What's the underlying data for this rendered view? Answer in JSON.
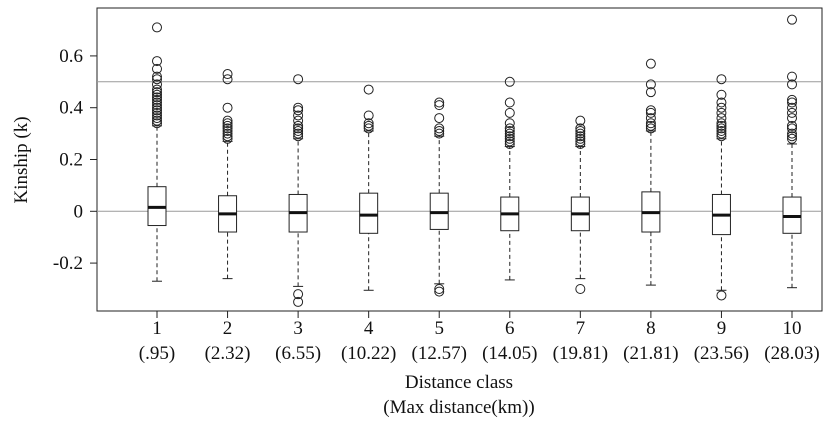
{
  "chart_data": {
    "type": "boxplot",
    "title": "",
    "xlabel": "Distance class",
    "xlabel_sub": "(Max distance(km))",
    "ylabel": "Kinship (k)",
    "ylim": [
      -0.385,
      0.785
    ],
    "yticks": [
      -0.2,
      0,
      0.2,
      0.4,
      0.6
    ],
    "ytick_labels": [
      "-0.2",
      "0",
      "0.2",
      "0.4",
      "0.6"
    ],
    "reference_lines": [
      0,
      0.5
    ],
    "grid": false,
    "legend": "none",
    "categories": [
      "1",
      "2",
      "3",
      "4",
      "5",
      "6",
      "7",
      "8",
      "9",
      "10"
    ],
    "category_sublabels": [
      "(.95)",
      "(2.32)",
      "(6.55)",
      "(10.22)",
      "(12.57)",
      "(14.05)",
      "(19.81)",
      "(21.81)",
      "(23.56)",
      "(28.03)"
    ],
    "boxes": [
      {
        "category": "1",
        "whisker_low": -0.27,
        "q1": -0.055,
        "median": 0.015,
        "q3": 0.095,
        "whisker_high": 0.33,
        "outliers": [
          0.34,
          0.35,
          0.36,
          0.37,
          0.38,
          0.39,
          0.4,
          0.41,
          0.42,
          0.43,
          0.44,
          0.45,
          0.46,
          0.47,
          0.49,
          0.51,
          0.52,
          0.55,
          0.58,
          0.71
        ]
      },
      {
        "category": "2",
        "whisker_low": -0.26,
        "q1": -0.08,
        "median": -0.01,
        "q3": 0.06,
        "whisker_high": 0.27,
        "outliers": [
          0.28,
          0.29,
          0.3,
          0.31,
          0.32,
          0.33,
          0.34,
          0.35,
          0.4,
          0.51,
          0.53
        ]
      },
      {
        "category": "3",
        "whisker_low": -0.29,
        "q1": -0.08,
        "median": -0.005,
        "q3": 0.065,
        "whisker_high": 0.28,
        "outliers": [
          -0.32,
          -0.35,
          0.29,
          0.3,
          0.31,
          0.32,
          0.33,
          0.35,
          0.37,
          0.39,
          0.4,
          0.51
        ]
      },
      {
        "category": "4",
        "whisker_low": -0.305,
        "q1": -0.085,
        "median": -0.015,
        "q3": 0.07,
        "whisker_high": 0.31,
        "outliers": [
          0.32,
          0.33,
          0.34,
          0.37,
          0.47
        ]
      },
      {
        "category": "5",
        "whisker_low": -0.28,
        "q1": -0.07,
        "median": -0.005,
        "q3": 0.07,
        "whisker_high": 0.29,
        "outliers": [
          -0.3,
          -0.31,
          0.3,
          0.31,
          0.32,
          0.36,
          0.41,
          0.42
        ]
      },
      {
        "category": "6",
        "whisker_low": -0.265,
        "q1": -0.075,
        "median": -0.01,
        "q3": 0.055,
        "whisker_high": 0.25,
        "outliers": [
          0.26,
          0.27,
          0.28,
          0.29,
          0.3,
          0.31,
          0.32,
          0.34,
          0.38,
          0.42,
          0.5
        ]
      },
      {
        "category": "7",
        "whisker_low": -0.26,
        "q1": -0.075,
        "median": -0.01,
        "q3": 0.055,
        "whisker_high": 0.25,
        "outliers": [
          -0.3,
          0.26,
          0.27,
          0.28,
          0.29,
          0.3,
          0.31,
          0.32,
          0.35
        ]
      },
      {
        "category": "8",
        "whisker_low": -0.285,
        "q1": -0.08,
        "median": -0.005,
        "q3": 0.075,
        "whisker_high": 0.31,
        "outliers": [
          0.32,
          0.33,
          0.34,
          0.36,
          0.38,
          0.39,
          0.46,
          0.49,
          0.57
        ]
      },
      {
        "category": "9",
        "whisker_low": -0.305,
        "q1": -0.09,
        "median": -0.015,
        "q3": 0.065,
        "whisker_high": 0.28,
        "outliers": [
          -0.325,
          0.29,
          0.3,
          0.31,
          0.32,
          0.33,
          0.34,
          0.36,
          0.38,
          0.4,
          0.42,
          0.45,
          0.51
        ]
      },
      {
        "category": "10",
        "whisker_low": -0.295,
        "q1": -0.085,
        "median": -0.02,
        "q3": 0.055,
        "whisker_high": 0.26,
        "outliers": [
          0.28,
          0.29,
          0.3,
          0.32,
          0.33,
          0.36,
          0.38,
          0.4,
          0.42,
          0.43,
          0.49,
          0.52,
          0.74
        ]
      }
    ]
  }
}
